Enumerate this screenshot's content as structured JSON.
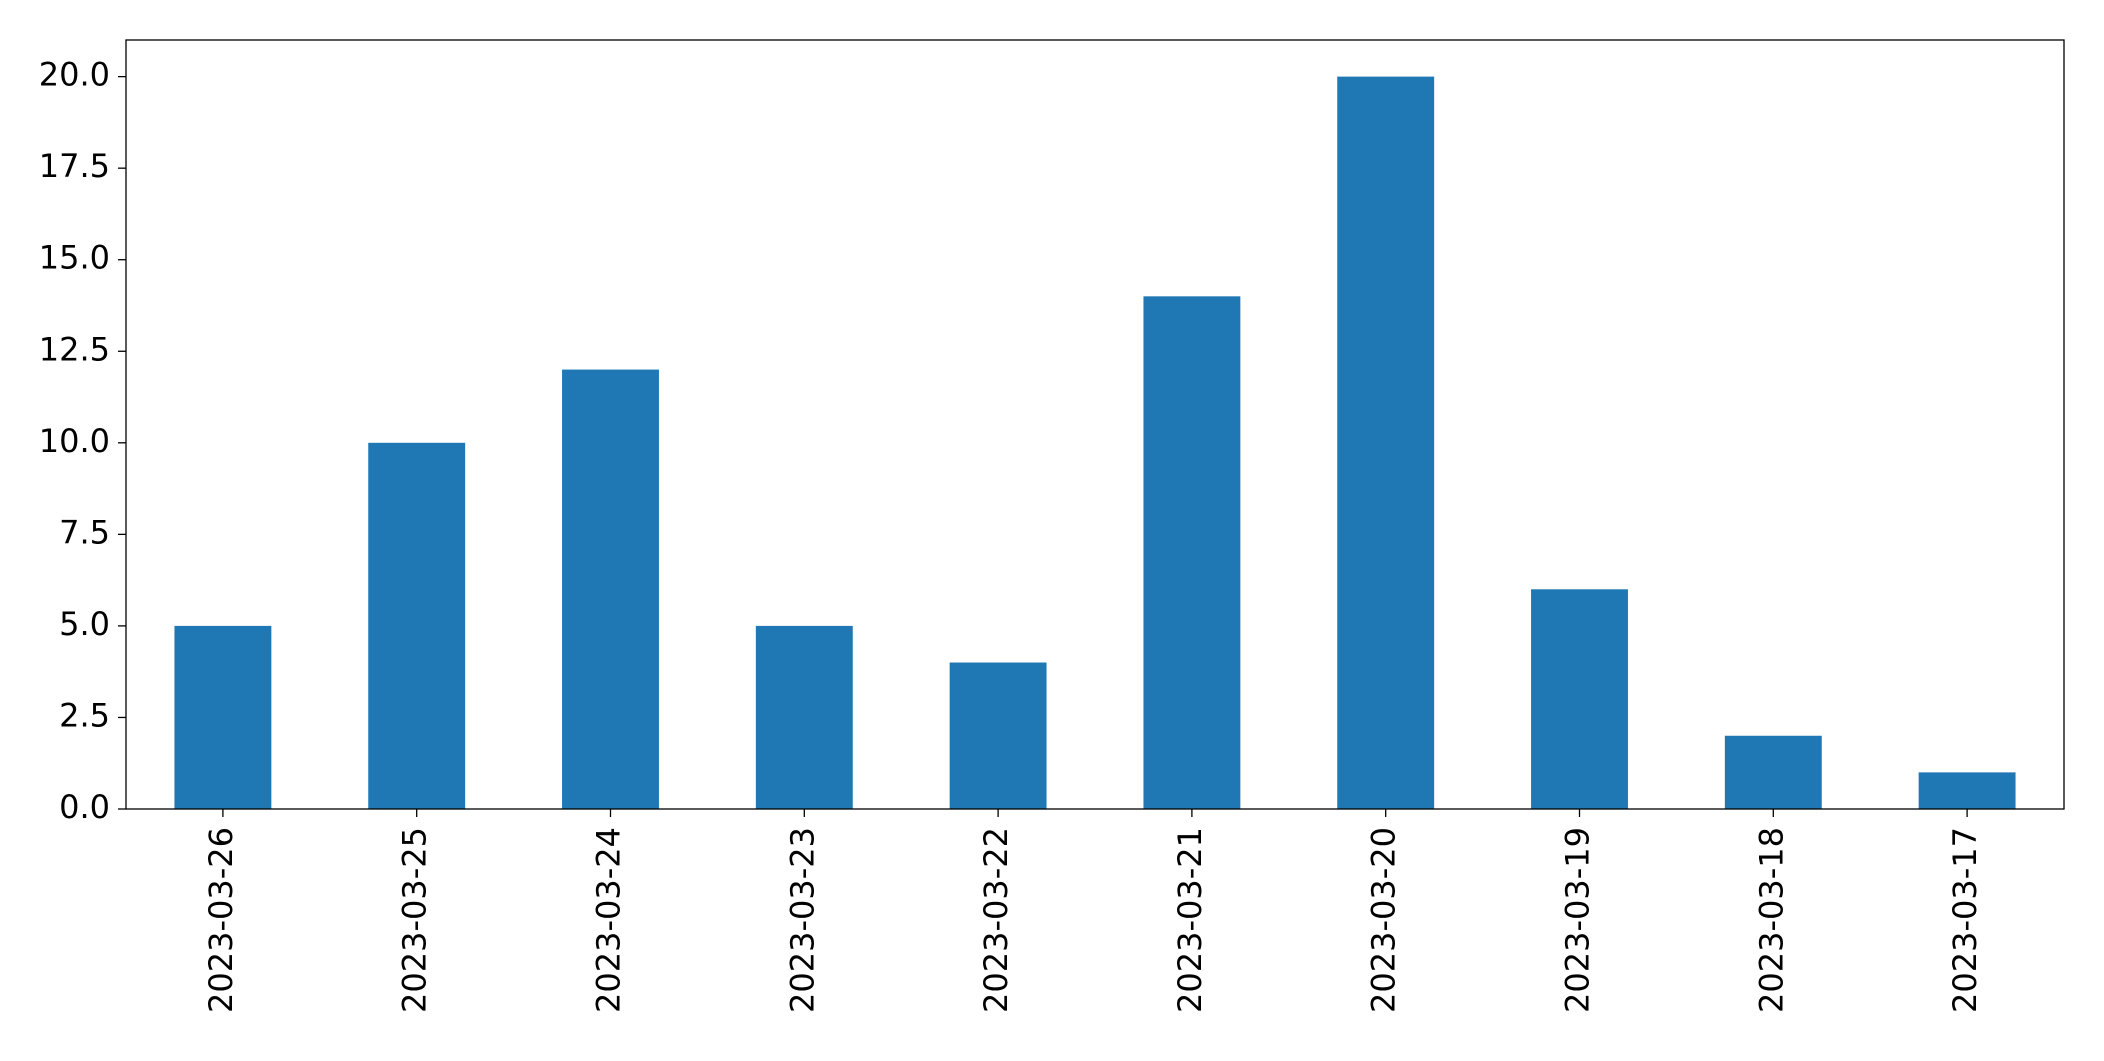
{
  "chart_data": {
    "type": "bar",
    "categories": [
      "2023-03-26",
      "2023-03-25",
      "2023-03-24",
      "2023-03-23",
      "2023-03-22",
      "2023-03-21",
      "2023-03-20",
      "2023-03-19",
      "2023-03-18",
      "2023-03-17"
    ],
    "values": [
      5,
      10,
      12,
      5,
      4,
      14,
      20,
      6,
      2,
      1
    ],
    "color": "#1f77b4",
    "ylim": [
      0,
      21
    ],
    "yticks": [
      {
        "value": 0,
        "label": "0.0"
      },
      {
        "value": 2.5,
        "label": "2.5"
      },
      {
        "value": 5,
        "label": "5.0"
      },
      {
        "value": 7.5,
        "label": "7.5"
      },
      {
        "value": 10,
        "label": "10.0"
      },
      {
        "value": 12.5,
        "label": "12.5"
      },
      {
        "value": 15,
        "label": "15.0"
      },
      {
        "value": 17.5,
        "label": "17.5"
      },
      {
        "value": 20,
        "label": "20.0"
      }
    ],
    "grid": false
  }
}
